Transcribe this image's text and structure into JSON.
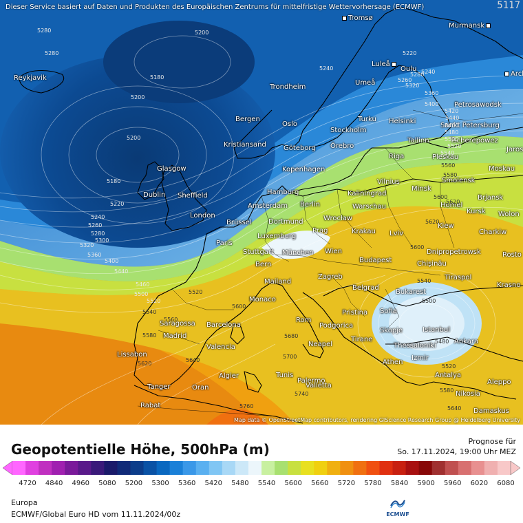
{
  "header": {
    "disclaimer": "Dieser Service basiert auf Daten und Produkten des Europäischen Zentrums für mittelfristige Wettervorhersage (ECMWF)",
    "map_id": "5117"
  },
  "map": {
    "attribution": "Map data © OpenStreetMap contributors, rendering GIScience Research Group @ Heidelberg University",
    "cities": [
      "Tromsø",
      "Murmansk",
      "Reykjavik",
      "Luleå",
      "Oulu",
      "Arch",
      "Umeå",
      "Trondheim",
      "Petrosawodsk",
      "Bergen",
      "Oslo",
      "Turku",
      "Helsinki",
      "Sankt Petersburg",
      "Stockholm",
      "Kristiansand",
      "Göteborg",
      "Örebro",
      "Tallinn",
      "Tscherepowez",
      "Jaros",
      "Pleskau",
      "Riga",
      "Glasgow",
      "Kopenhagen",
      "Moskau",
      "Vilnius",
      "Minsk",
      "Smolensk",
      "Dublin",
      "Sheffield",
      "Hamburg",
      "Kaliningrad",
      "Brjansk",
      "Amsterdam",
      "Berlin",
      "Homel",
      "London",
      "Warschau",
      "Kursk",
      "Wolon",
      "Brüssel",
      "Dortmund",
      "Wrocław",
      "Kiew",
      "Paris",
      "Luxemburg",
      "Prag",
      "Krakau",
      "Lviv",
      "Charkiw",
      "Stuttgart",
      "München",
      "Wien",
      "Dnipropetrowsk",
      "Rosto",
      "Bern",
      "Budapest",
      "Chișinău",
      "Mailand",
      "Zagreb",
      "Tiraspol",
      "Krasno",
      "Monaco",
      "Belgrad",
      "Bukarest",
      "Saragossa",
      "Barcelona",
      "Rom",
      "Pristina",
      "Sofia",
      "Madrid",
      "Podgorica",
      "Skopje",
      "Istanbul",
      "Tirane",
      "Neapel",
      "Thessaloniki",
      "Ankara",
      "Lissabon",
      "Valencia",
      "Palermo",
      "Athen",
      "Izmir",
      "Tanger",
      "Algier",
      "Tunis",
      "Antalya",
      "Aleppo",
      "Oran",
      "Valletta",
      "Nikosia",
      "Rabat",
      "Damaskus"
    ],
    "contour_labels": [
      "5280",
      "5200",
      "5280",
      "5240",
      "5180",
      "5200",
      "5200",
      "5180",
      "5220",
      "5240",
      "5260",
      "5280",
      "5300",
      "5320",
      "5360",
      "5400",
      "5440",
      "5460",
      "5500",
      "5520",
      "5520",
      "5540",
      "5560",
      "5580",
      "5600",
      "5620",
      "5640",
      "5680",
      "5700",
      "5740",
      "5760",
      "5600",
      "5620",
      "5540",
      "5500",
      "5480",
      "5520",
      "5580",
      "5640",
      "5220",
      "5240",
      "5260",
      "5280",
      "5320",
      "5360",
      "5400",
      "5420",
      "5440",
      "5460",
      "5480",
      "5500",
      "5520",
      "5540",
      "5560",
      "5580",
      "5600",
      "5620"
    ]
  },
  "legend": {
    "title": "Geopotentielle Höhe, 500hPa (m)",
    "prognose_label": "Prognose für",
    "prognose_date": "So. 17.11.2024, 19:00 Uhr MEZ",
    "ticks": [
      "4720",
      "4840",
      "4960",
      "5080",
      "5200",
      "5300",
      "5360",
      "5420",
      "5480",
      "5540",
      "5600",
      "5660",
      "5720",
      "5780",
      "5840",
      "5900",
      "5960",
      "6020",
      "6080"
    ],
    "colors": [
      "#ff66ff",
      "#e040e0",
      "#c030c0",
      "#a020b0",
      "#7a1a9a",
      "#5a1a8a",
      "#3a1a7a",
      "#1a1a6a",
      "#102a78",
      "#0c3d8a",
      "#0a52a5",
      "#0a68c0",
      "#1a80d8",
      "#3a98e8",
      "#5ab0f0",
      "#80c6f4",
      "#a8d8f6",
      "#cce8f8",
      "#ecf6fb",
      "#c8f0a0",
      "#a8e070",
      "#c8e040",
      "#e8e020",
      "#f0d010",
      "#f0b010",
      "#f09010",
      "#f07010",
      "#f05010",
      "#e03010",
      "#c82010",
      "#a81010",
      "#880808",
      "#a03030",
      "#c05050",
      "#d87070",
      "#e89090",
      "#f0b0b0",
      "#f8c8c8"
    ],
    "region": "Europa",
    "model": "ECMWF/Global Euro HD vom  11.11.2024/00z",
    "logo_text": "ECMWF"
  }
}
